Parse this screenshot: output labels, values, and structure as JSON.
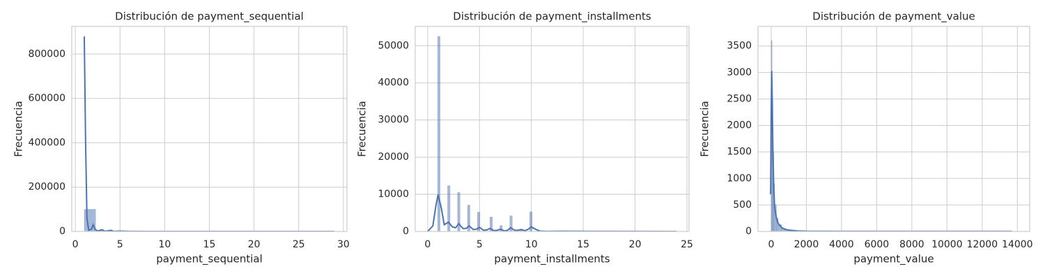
{
  "chart_data": [
    {
      "type": "histogram",
      "title": "Distribución de payment_sequential",
      "xlabel": "payment_sequential",
      "ylabel": "Frecuencia",
      "color": "#4c72b0",
      "grid": true,
      "xlim": [
        -0.4,
        30.4
      ],
      "xticks": [
        0,
        5,
        10,
        15,
        20,
        25,
        30
      ],
      "ylim": [
        0,
        925000
      ],
      "yticks": [
        0,
        200000,
        400000,
        600000,
        800000
      ],
      "bins": [
        1,
        2.27,
        3.55,
        4.82,
        6.09,
        7.36,
        8.64,
        9.91,
        11.18,
        12.45,
        13.73,
        15,
        16.27,
        17.55,
        18.82,
        20.09,
        21.36,
        22.64,
        23.91,
        25.18,
        26.45,
        27.73,
        29
      ],
      "counts": [
        100000,
        3000,
        1500,
        700,
        400,
        250,
        150,
        100,
        80,
        60,
        40,
        30,
        25,
        20,
        15,
        12,
        10,
        8,
        6,
        5,
        4,
        3
      ],
      "kde": {
        "x": [
          1,
          1.15,
          1.3,
          1.5,
          1.8,
          2,
          2.2,
          2.5,
          3,
          3.3,
          4,
          4.3,
          5,
          6,
          8,
          29
        ],
        "y": [
          880000,
          400000,
          60000,
          5000,
          10000,
          30000,
          10000,
          2000,
          8000,
          1000,
          5000,
          500,
          1500,
          500,
          200,
          0
        ]
      }
    },
    {
      "type": "histogram",
      "title": "Distribución de payment_installments",
      "xlabel": "payment_installments",
      "ylabel": "Frecuencia",
      "color": "#4c72b0",
      "grid": true,
      "xlim": [
        -1.2,
        25.2
      ],
      "xticks": [
        0,
        5,
        10,
        15,
        20,
        25
      ],
      "ylim": [
        0,
        55200
      ],
      "yticks": [
        0,
        10000,
        20000,
        30000,
        40000,
        50000
      ],
      "bins": [
        0,
        0.24,
        0.48,
        0.72,
        0.96,
        1.2,
        1.44,
        1.68,
        1.92,
        2.16,
        2.4,
        2.64,
        2.88,
        3.12,
        3.36,
        3.6,
        3.84,
        4.08,
        4.32,
        4.56,
        4.8,
        5.04,
        5.28,
        5.52,
        5.76,
        6,
        6.24,
        6.48,
        6.72,
        6.96,
        7.2,
        7.44,
        7.68,
        7.92,
        8.16,
        8.4,
        8.64,
        8.88,
        9.12,
        9.36,
        9.6,
        9.84,
        10.08,
        10.32,
        10.56,
        10.8,
        11.04,
        11.28,
        11.52,
        11.76,
        12,
        12.24,
        12.48,
        12.72,
        12.96,
        13.2,
        13.44,
        13.68,
        13.92,
        14.16,
        14.4,
        14.64,
        14.88,
        15.12,
        15.36,
        15.6,
        15.84,
        16.08,
        16.32,
        16.56,
        16.8,
        17.04,
        17.28,
        17.52,
        17.76,
        18,
        18.24,
        18.48,
        18.72,
        18.96,
        19.2,
        19.44,
        19.68,
        19.92,
        20.16,
        20.4,
        20.64,
        20.88,
        21.12,
        21.36,
        21.6,
        21.84,
        22.08,
        22.32,
        22.56,
        22.8,
        23.04,
        23.28,
        23.52,
        23.76,
        24
      ],
      "counts": [
        3,
        0,
        0,
        0,
        52500,
        0,
        0,
        0,
        12300,
        0,
        0,
        0,
        10500,
        0,
        0,
        0,
        7100,
        0,
        0,
        0,
        5200,
        0,
        0,
        0,
        0,
        3900,
        0,
        0,
        0,
        1600,
        0,
        0,
        0,
        4200,
        0,
        0,
        0,
        650,
        0,
        0,
        0,
        5300,
        0,
        0,
        0,
        20,
        0,
        0,
        0,
        0,
        130,
        0,
        0,
        0,
        15,
        0,
        0,
        0,
        15,
        0,
        0,
        0,
        75,
        0,
        0,
        0,
        5,
        0,
        0,
        0,
        8,
        0,
        0,
        0,
        0,
        25,
        0,
        0,
        0,
        0,
        0,
        0,
        0,
        17,
        0,
        0,
        0,
        3,
        0,
        0,
        0,
        1,
        0,
        0,
        0,
        1,
        0,
        0,
        0,
        18
      ],
      "kde": {
        "x": [
          0,
          0.5,
          0.8,
          1,
          1.3,
          1.6,
          2,
          2.4,
          2.7,
          3,
          3.4,
          3.7,
          4,
          4.4,
          4.7,
          5,
          5.4,
          5.7,
          6,
          6.4,
          6.7,
          7,
          7.4,
          7.7,
          8,
          8.4,
          8.7,
          9,
          9.4,
          9.7,
          10,
          10.4,
          10.8,
          11.5,
          13,
          16,
          24
        ],
        "y": [
          0,
          1500,
          7000,
          9900,
          6500,
          1800,
          2500,
          1200,
          1000,
          2100,
          800,
          800,
          1500,
          500,
          600,
          1100,
          300,
          400,
          800,
          200,
          300,
          600,
          150,
          300,
          1000,
          300,
          300,
          500,
          200,
          600,
          1200,
          600,
          100,
          30,
          80,
          20,
          0
        ]
      }
    },
    {
      "type": "histogram",
      "title": "Distribución de payment_value",
      "xlabel": "payment_value",
      "ylabel": "Frecuencia",
      "color": "#4c72b0",
      "grid": true,
      "xlim": [
        -750,
        14700
      ],
      "xticks": [
        0,
        2000,
        4000,
        6000,
        8000,
        10000,
        12000,
        14000
      ],
      "ylim": [
        0,
        3870
      ],
      "yticks": [
        0,
        500,
        1000,
        1500,
        2000,
        2500,
        3000,
        3500
      ],
      "bins": [
        0,
        50,
        100,
        150,
        200,
        300,
        400,
        600,
        800,
        1000,
        1500,
        2000,
        3000,
        5000,
        8000,
        11000,
        13700
      ],
      "counts": [
        3600,
        2500,
        1500,
        900,
        500,
        250,
        130,
        60,
        35,
        15,
        6,
        3,
        1,
        0,
        0,
        1
      ],
      "kde": {
        "x": [
          -30,
          0,
          30,
          60,
          100,
          150,
          200,
          300,
          400,
          600,
          800,
          1000,
          1500,
          2000,
          4000,
          8000,
          13700
        ],
        "y": [
          700,
          2200,
          3030,
          2500,
          1500,
          800,
          450,
          250,
          150,
          70,
          40,
          25,
          10,
          5,
          2,
          1,
          1
        ]
      }
    }
  ]
}
